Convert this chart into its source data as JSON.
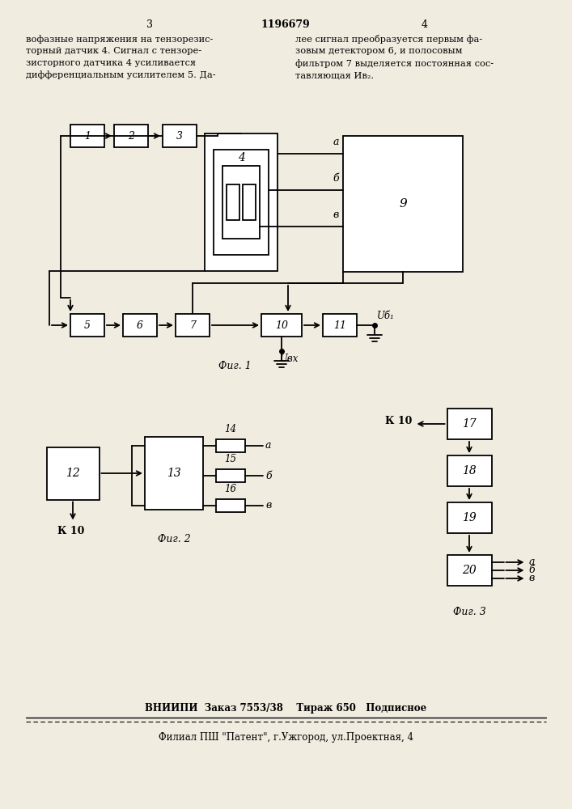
{
  "patent_number": "1196679",
  "page_left": "3",
  "page_right": "4",
  "text_left": "вофазные напряжения на тензорезис-\nторный датчик 4. Сигнал с тензоре-\nзисторного датчика 4 усиливается\nдифференциальным усилителем 5. Да-",
  "text_right": "лее сигнал преобразуется первым фа-\nзовым детектором 6, и полосовым\nфильтром 7 выделяется постоянная сос-\nтавляющая Ив₂.",
  "fig1_caption": "Фиг. 1",
  "fig2_caption": "Фиг. 2",
  "fig3_caption": "Фиг. 3",
  "footer1": "ВНИИПИ  Заказ 7553/38    Тираж 650   Подписное",
  "footer2": "Филиал ПШ \"Патент\", г.Ужгород, ул.Проектная, 4",
  "bg": "#f0ece0",
  "lw": 1.3
}
